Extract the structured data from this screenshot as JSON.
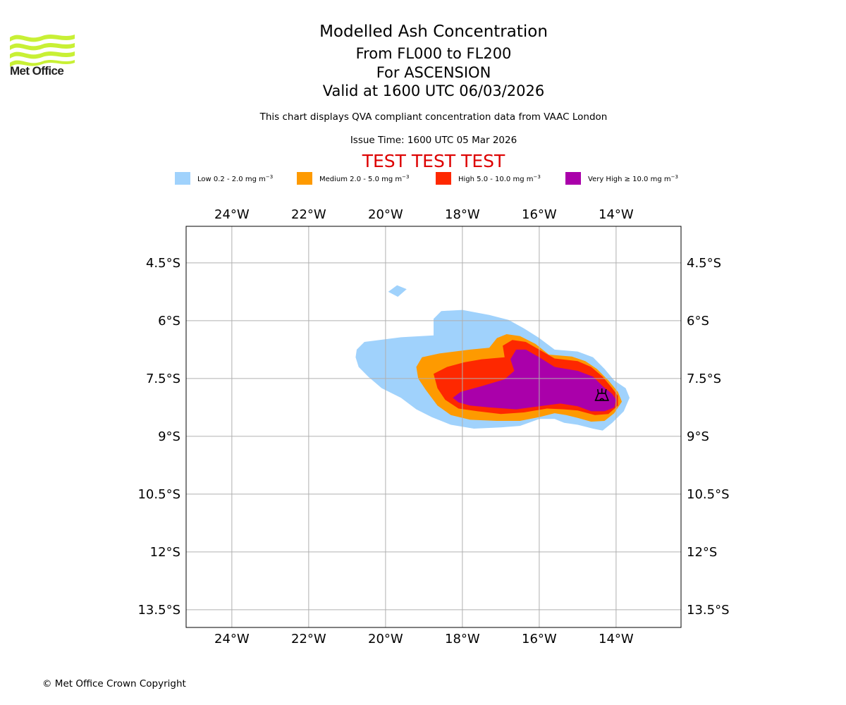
{
  "header": {
    "logo_text": "Met Office",
    "title": "Modelled Ash Concentration",
    "levels": "From FL000 to FL200",
    "volcano": "For ASCENSION",
    "valid": "Valid at 1600 UTC 06/03/2026",
    "description": "This chart displays QVA compliant concentration data from VAAC London",
    "issue_time": "Issue Time: 1600 UTC 05 Mar 2026",
    "test_banner": "TEST TEST TEST",
    "test_color": "#dd0000"
  },
  "legend": [
    {
      "label": "Low 0.2 - 2.0 mg m",
      "unit_exp": "−3",
      "color": "#a0d2fc"
    },
    {
      "label": "Medium 2.0 - 5.0 mg m",
      "unit_exp": "−3",
      "color": "#fe9a00"
    },
    {
      "label": "High 5.0 - 10.0 mg m",
      "unit_exp": "−3",
      "color": "#fe2800"
    },
    {
      "label": "Very High  ≥  10.0 mg m",
      "unit_exp": "−3",
      "color": "#aa00aa"
    }
  ],
  "footer": {
    "copyright": "© Met Office Crown Copyright"
  },
  "chart_data": {
    "type": "map",
    "title": "Modelled Ash Concentration",
    "extent": {
      "lon": [
        -25.19,
        -12.31
      ],
      "lat": [
        -13.96,
        -3.55
      ]
    },
    "grid": true,
    "x_ticks": [
      {
        "value": -24,
        "label": "24°W"
      },
      {
        "value": -22,
        "label": "22°W"
      },
      {
        "value": -20,
        "label": "20°W"
      },
      {
        "value": -18,
        "label": "18°W"
      },
      {
        "value": -16,
        "label": "16°W"
      },
      {
        "value": -14,
        "label": "14°W"
      }
    ],
    "y_ticks": [
      {
        "value": -4.5,
        "label": "4.5°S"
      },
      {
        "value": -6,
        "label": "6°S"
      },
      {
        "value": -7.5,
        "label": "7.5°S"
      },
      {
        "value": -9,
        "label": "9°S"
      },
      {
        "value": -10.5,
        "label": "10.5°S"
      },
      {
        "value": -12,
        "label": "12°S"
      },
      {
        "value": -13.5,
        "label": "13.5°S"
      }
    ],
    "volcano": {
      "name": "ASCENSION",
      "lon": -14.37,
      "lat": -7.94,
      "symbol": "volcano"
    },
    "contours": [
      {
        "level": "Low",
        "color": "#a0d2fc",
        "polygons": [
          [
            [
              -19.93,
              -5.25
            ],
            [
              -19.7,
              -5.08
            ],
            [
              -19.45,
              -5.18
            ],
            [
              -19.68,
              -5.38
            ]
          ],
          [
            [
              -20.75,
              -6.75
            ],
            [
              -20.55,
              -6.55
            ],
            [
              -19.6,
              -6.43
            ],
            [
              -18.75,
              -6.38
            ],
            [
              -18.75,
              -5.95
            ],
            [
              -18.55,
              -5.75
            ],
            [
              -18.0,
              -5.72
            ],
            [
              -17.3,
              -5.85
            ],
            [
              -16.8,
              -5.98
            ],
            [
              -16.4,
              -6.2
            ],
            [
              -16.0,
              -6.45
            ],
            [
              -15.6,
              -6.75
            ],
            [
              -15.0,
              -6.8
            ],
            [
              -14.6,
              -6.95
            ],
            [
              -14.3,
              -7.25
            ],
            [
              -14.05,
              -7.55
            ],
            [
              -13.75,
              -7.75
            ],
            [
              -13.65,
              -8.0
            ],
            [
              -13.8,
              -8.35
            ],
            [
              -14.1,
              -8.65
            ],
            [
              -14.35,
              -8.85
            ],
            [
              -14.6,
              -8.8
            ],
            [
              -15.0,
              -8.7
            ],
            [
              -15.35,
              -8.65
            ],
            [
              -15.6,
              -8.55
            ],
            [
              -16.0,
              -8.55
            ],
            [
              -16.5,
              -8.73
            ],
            [
              -17.0,
              -8.77
            ],
            [
              -17.7,
              -8.8
            ],
            [
              -18.3,
              -8.7
            ],
            [
              -18.8,
              -8.5
            ],
            [
              -19.2,
              -8.3
            ],
            [
              -19.6,
              -8.0
            ],
            [
              -20.1,
              -7.75
            ],
            [
              -20.45,
              -7.45
            ],
            [
              -20.7,
              -7.2
            ],
            [
              -20.78,
              -6.95
            ]
          ]
        ]
      },
      {
        "level": "Medium",
        "color": "#fe9a00",
        "polygons": [
          [
            [
              -19.2,
              -7.2
            ],
            [
              -19.05,
              -6.95
            ],
            [
              -18.6,
              -6.85
            ],
            [
              -17.8,
              -6.75
            ],
            [
              -17.3,
              -6.7
            ],
            [
              -17.1,
              -6.45
            ],
            [
              -16.85,
              -6.35
            ],
            [
              -16.5,
              -6.4
            ],
            [
              -16.1,
              -6.6
            ],
            [
              -15.75,
              -6.88
            ],
            [
              -15.15,
              -6.93
            ],
            [
              -14.8,
              -7.05
            ],
            [
              -14.5,
              -7.25
            ],
            [
              -14.2,
              -7.55
            ],
            [
              -13.95,
              -7.85
            ],
            [
              -13.85,
              -8.1
            ],
            [
              -14.05,
              -8.4
            ],
            [
              -14.3,
              -8.6
            ],
            [
              -14.65,
              -8.62
            ],
            [
              -15.0,
              -8.52
            ],
            [
              -15.3,
              -8.45
            ],
            [
              -15.6,
              -8.4
            ],
            [
              -16.0,
              -8.5
            ],
            [
              -16.5,
              -8.6
            ],
            [
              -17.1,
              -8.6
            ],
            [
              -17.8,
              -8.57
            ],
            [
              -18.3,
              -8.45
            ],
            [
              -18.65,
              -8.2
            ],
            [
              -18.95,
              -7.8
            ],
            [
              -19.15,
              -7.5
            ]
          ]
        ]
      },
      {
        "level": "High",
        "color": "#fe2800",
        "polygons": [
          [
            [
              -18.75,
              -7.38
            ],
            [
              -18.4,
              -7.2
            ],
            [
              -17.95,
              -7.08
            ],
            [
              -17.5,
              -7.0
            ],
            [
              -16.9,
              -6.95
            ],
            [
              -16.95,
              -6.65
            ],
            [
              -16.7,
              -6.5
            ],
            [
              -16.35,
              -6.55
            ],
            [
              -16.0,
              -6.75
            ],
            [
              -15.6,
              -6.98
            ],
            [
              -15.0,
              -7.05
            ],
            [
              -14.65,
              -7.2
            ],
            [
              -14.35,
              -7.45
            ],
            [
              -14.1,
              -7.75
            ],
            [
              -13.95,
              -7.95
            ],
            [
              -13.95,
              -8.2
            ],
            [
              -14.2,
              -8.42
            ],
            [
              -14.55,
              -8.45
            ],
            [
              -15.0,
              -8.33
            ],
            [
              -15.35,
              -8.3
            ],
            [
              -15.8,
              -8.28
            ],
            [
              -16.4,
              -8.38
            ],
            [
              -17.0,
              -8.42
            ],
            [
              -17.6,
              -8.35
            ],
            [
              -18.1,
              -8.28
            ],
            [
              -18.45,
              -8.05
            ],
            [
              -18.65,
              -7.75
            ]
          ]
        ]
      },
      {
        "level": "Very High",
        "color": "#aa00aa",
        "polygons": [
          [
            [
              -18.25,
              -8.0
            ],
            [
              -18.05,
              -7.85
            ],
            [
              -17.5,
              -7.7
            ],
            [
              -16.9,
              -7.52
            ],
            [
              -16.65,
              -7.3
            ],
            [
              -16.75,
              -7.0
            ],
            [
              -16.6,
              -6.75
            ],
            [
              -16.35,
              -6.75
            ],
            [
              -16.0,
              -6.95
            ],
            [
              -15.6,
              -7.2
            ],
            [
              -15.0,
              -7.3
            ],
            [
              -14.6,
              -7.45
            ],
            [
              -14.35,
              -7.7
            ],
            [
              -14.1,
              -7.9
            ],
            [
              -14.0,
              -8.05
            ],
            [
              -14.05,
              -8.25
            ],
            [
              -14.3,
              -8.35
            ],
            [
              -14.65,
              -8.35
            ],
            [
              -15.0,
              -8.22
            ],
            [
              -15.45,
              -8.15
            ],
            [
              -16.0,
              -8.22
            ],
            [
              -16.6,
              -8.3
            ],
            [
              -17.3,
              -8.25
            ],
            [
              -17.8,
              -8.2
            ],
            [
              -18.1,
              -8.12
            ]
          ]
        ]
      }
    ]
  }
}
